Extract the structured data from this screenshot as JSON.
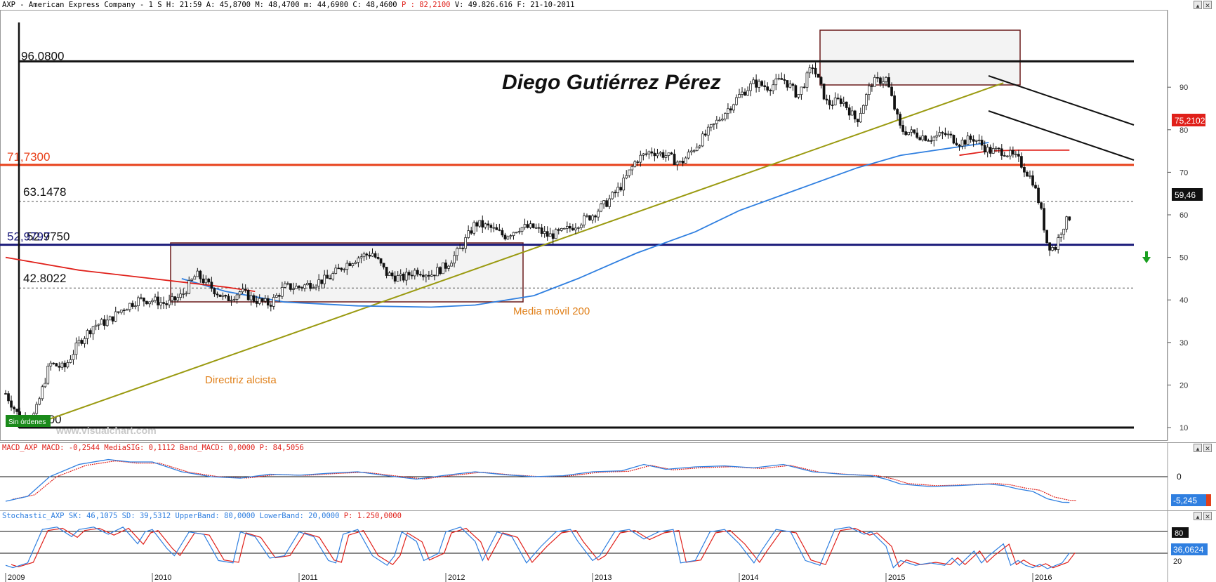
{
  "header": {
    "main": {
      "prefix": "AXP - American Express Company -  1 S H: 21:59 A: 45,8700 M: 48,4700 m: 44,6900 C: 48,4600 ",
      "p": "P : 82,2100",
      "suffix": " V: 49.826.616 F: 21-10-2011"
    },
    "macd": {
      "prefix": "MACD_AXP MACD: -0,2544 MediaSIG: 0,1112 Band_MACD: 0,0000 ",
      "p": "P: 84,5056"
    },
    "stoch": {
      "prefix": "Stochastic_AXP SK: 46,1075 SD: 39,5312 UpperBand: 80,0000 LowerBand: 20,0000 ",
      "p": "P: 1.250,0000"
    }
  },
  "annotations": {
    "author": "Diego Gutiérrez Pérez",
    "ma_label": "Media móvil 200",
    "trend_label": "Directriz alcista",
    "watermark": "www.visualchart.com",
    "badge": "Sin órdenes"
  },
  "levels": [
    {
      "label": "96.0800",
      "value": 96.08
    },
    {
      "label": "71,7300",
      "value": 71.73
    },
    {
      "label": "63.1478",
      "value": 63.1478
    },
    {
      "label": "52.9750",
      "value": 52.975
    },
    {
      "label": "52,9797",
      "value": 52.9797
    },
    {
      "label": "42.8022",
      "value": 42.8022
    },
    {
      "label": ".00",
      "value": 10
    }
  ],
  "badges": {
    "price_ma": "75,2102",
    "price_last": "59,46",
    "macd_val": "-5,245",
    "macd_zero": "0",
    "stoch_val": "36,0624",
    "stoch_80": "80",
    "stoch_axis": "20"
  },
  "colors": {
    "ma200": "#2f7fe0",
    "ma_short": "#e0201a",
    "trendline": "#9a9a10",
    "resistance": "#e8401a",
    "support": "#1a1a7a",
    "macd": "#2f7fe0",
    "signal": "#e0201a"
  },
  "chart_data": {
    "type": "candlestick",
    "x_axis": {
      "tick_labels": [
        "2009",
        "2010",
        "2011",
        "2012",
        "2013",
        "2014",
        "2015",
        "2016"
      ]
    },
    "y_axis": {
      "range": [
        6,
        100
      ],
      "tick_labels": [
        "10",
        "20",
        "30",
        "40",
        "50",
        "60",
        "70",
        "80",
        "90"
      ]
    },
    "series": [
      {
        "name": "AXP",
        "kind": "price",
        "points": [
          [
            2009.0,
            18
          ],
          [
            2009.1,
            12
          ],
          [
            2009.2,
            13
          ],
          [
            2009.3,
            25
          ],
          [
            2009.4,
            24
          ],
          [
            2009.5,
            30
          ],
          [
            2009.6,
            34
          ],
          [
            2009.7,
            35
          ],
          [
            2009.8,
            38
          ],
          [
            2009.9,
            40
          ],
          [
            2010.0,
            40
          ],
          [
            2010.1,
            39
          ],
          [
            2010.2,
            41
          ],
          [
            2010.3,
            46
          ],
          [
            2010.4,
            43
          ],
          [
            2010.5,
            40
          ],
          [
            2010.6,
            42
          ],
          [
            2010.7,
            40
          ],
          [
            2010.8,
            39
          ],
          [
            2010.9,
            43
          ],
          [
            2011.0,
            43
          ],
          [
            2011.1,
            44
          ],
          [
            2011.2,
            45
          ],
          [
            2011.3,
            48
          ],
          [
            2011.4,
            50
          ],
          [
            2011.5,
            51
          ],
          [
            2011.6,
            46
          ],
          [
            2011.7,
            45
          ],
          [
            2011.8,
            47
          ],
          [
            2011.9,
            46
          ],
          [
            2012.0,
            48
          ],
          [
            2012.1,
            52
          ],
          [
            2012.2,
            58
          ],
          [
            2012.3,
            57
          ],
          [
            2012.4,
            55
          ],
          [
            2012.5,
            57
          ],
          [
            2012.6,
            57
          ],
          [
            2012.7,
            55
          ],
          [
            2012.8,
            56
          ],
          [
            2012.9,
            58
          ],
          [
            2013.0,
            60
          ],
          [
            2013.1,
            63
          ],
          [
            2013.2,
            67
          ],
          [
            2013.3,
            73
          ],
          [
            2013.4,
            75
          ],
          [
            2013.5,
            74
          ],
          [
            2013.6,
            72
          ],
          [
            2013.7,
            76
          ],
          [
            2013.8,
            80
          ],
          [
            2013.9,
            84
          ],
          [
            2014.0,
            88
          ],
          [
            2014.1,
            91
          ],
          [
            2014.2,
            90
          ],
          [
            2014.3,
            92
          ],
          [
            2014.4,
            88
          ],
          [
            2014.5,
            95
          ],
          [
            2014.6,
            86
          ],
          [
            2014.7,
            87
          ],
          [
            2014.8,
            82
          ],
          [
            2014.9,
            91
          ],
          [
            2015.0,
            92
          ],
          [
            2015.1,
            80
          ],
          [
            2015.2,
            79
          ],
          [
            2015.3,
            78
          ],
          [
            2015.4,
            79
          ],
          [
            2015.5,
            77
          ],
          [
            2015.6,
            78
          ],
          [
            2015.7,
            75
          ],
          [
            2015.8,
            75
          ],
          [
            2015.9,
            73
          ],
          [
            2016.0,
            68
          ],
          [
            2016.05,
            62
          ],
          [
            2016.1,
            53
          ],
          [
            2016.15,
            52
          ],
          [
            2016.2,
            57
          ],
          [
            2016.25,
            59.46
          ]
        ]
      },
      {
        "name": "Media móvil 200",
        "kind": "ma200",
        "points": [
          [
            2010.2,
            45
          ],
          [
            2010.5,
            42
          ],
          [
            2010.9,
            39.5
          ],
          [
            2011.4,
            38.6
          ],
          [
            2011.9,
            38.3
          ],
          [
            2012.2,
            38.8
          ],
          [
            2012.6,
            41
          ],
          [
            2012.9,
            45
          ],
          [
            2013.3,
            51
          ],
          [
            2013.7,
            56
          ],
          [
            2014.0,
            61
          ],
          [
            2014.4,
            66
          ],
          [
            2014.8,
            71
          ],
          [
            2015.1,
            74
          ],
          [
            2015.5,
            76
          ],
          [
            2015.7,
            77
          ]
        ]
      },
      {
        "name": "",
        "kind": "ma_short",
        "points": [
          [
            2009.0,
            50
          ],
          [
            2009.5,
            47
          ],
          [
            2010.0,
            45
          ],
          [
            2010.5,
            43
          ],
          [
            2010.7,
            42
          ]
        ]
      },
      {
        "name": "",
        "kind": "ma_short_right",
        "points": [
          [
            2015.5,
            74
          ],
          [
            2015.7,
            75
          ],
          [
            2015.9,
            75.2
          ],
          [
            2016.25,
            75.2
          ]
        ]
      },
      {
        "name": "MACD",
        "kind": "macd",
        "y_range": [
          -6,
          5
        ],
        "points": [
          [
            2009.0,
            -5
          ],
          [
            2009.15,
            -4
          ],
          [
            2009.3,
            0
          ],
          [
            2009.5,
            2.5
          ],
          [
            2009.7,
            3.5
          ],
          [
            2009.85,
            3
          ],
          [
            2010.0,
            3
          ],
          [
            2010.2,
            1
          ],
          [
            2010.4,
            0
          ],
          [
            2010.6,
            -0.3
          ],
          [
            2010.8,
            0.5
          ],
          [
            2011.0,
            0.3
          ],
          [
            2011.2,
            0.7
          ],
          [
            2011.4,
            1
          ],
          [
            2011.6,
            0.2
          ],
          [
            2011.8,
            -0.5
          ],
          [
            2012.0,
            0.3
          ],
          [
            2012.2,
            1
          ],
          [
            2012.4,
            0.4
          ],
          [
            2012.6,
            0
          ],
          [
            2012.8,
            0.2
          ],
          [
            2013.0,
            1
          ],
          [
            2013.2,
            1.2
          ],
          [
            2013.35,
            2.5
          ],
          [
            2013.5,
            1.5
          ],
          [
            2013.7,
            2
          ],
          [
            2013.9,
            2.2
          ],
          [
            2014.1,
            1.8
          ],
          [
            2014.3,
            2.5
          ],
          [
            2014.5,
            1
          ],
          [
            2014.7,
            0.5
          ],
          [
            2014.9,
            0.2
          ],
          [
            2015.0,
            -0.5
          ],
          [
            2015.1,
            -1.5
          ],
          [
            2015.3,
            -2
          ],
          [
            2015.5,
            -1.8
          ],
          [
            2015.7,
            -1.5
          ],
          [
            2015.8,
            -1.8
          ],
          [
            2015.9,
            -2.5
          ],
          [
            2016.0,
            -3
          ],
          [
            2016.1,
            -4.5
          ],
          [
            2016.2,
            -5.2
          ],
          [
            2016.25,
            -5.245
          ]
        ]
      },
      {
        "name": "SK",
        "kind": "stoch",
        "y_range": [
          0,
          100
        ],
        "points": [
          [
            2009.0,
            10
          ],
          [
            2009.05,
            5
          ],
          [
            2009.15,
            15
          ],
          [
            2009.25,
            85
          ],
          [
            2009.35,
            90
          ],
          [
            2009.45,
            70
          ],
          [
            2009.5,
            85
          ],
          [
            2009.6,
            90
          ],
          [
            2009.7,
            75
          ],
          [
            2009.8,
            90
          ],
          [
            2009.9,
            55
          ],
          [
            2009.95,
            80
          ],
          [
            2010.0,
            85
          ],
          [
            2010.1,
            45
          ],
          [
            2010.15,
            30
          ],
          [
            2010.25,
            80
          ],
          [
            2010.35,
            75
          ],
          [
            2010.45,
            20
          ],
          [
            2010.55,
            15
          ],
          [
            2010.6,
            80
          ],
          [
            2010.7,
            70
          ],
          [
            2010.8,
            25
          ],
          [
            2010.9,
            30
          ],
          [
            2011.0,
            80
          ],
          [
            2011.1,
            70
          ],
          [
            2011.2,
            20
          ],
          [
            2011.25,
            15
          ],
          [
            2011.3,
            75
          ],
          [
            2011.4,
            85
          ],
          [
            2011.5,
            30
          ],
          [
            2011.6,
            10
          ],
          [
            2011.65,
            30
          ],
          [
            2011.7,
            80
          ],
          [
            2011.8,
            60
          ],
          [
            2011.85,
            20
          ],
          [
            2011.95,
            35
          ],
          [
            2012.0,
            80
          ],
          [
            2012.1,
            90
          ],
          [
            2012.2,
            60
          ],
          [
            2012.25,
            20
          ],
          [
            2012.35,
            80
          ],
          [
            2012.45,
            70
          ],
          [
            2012.55,
            15
          ],
          [
            2012.65,
            50
          ],
          [
            2012.75,
            80
          ],
          [
            2012.85,
            85
          ],
          [
            2012.9,
            60
          ],
          [
            2013.0,
            20
          ],
          [
            2013.05,
            30
          ],
          [
            2013.15,
            80
          ],
          [
            2013.25,
            85
          ],
          [
            2013.35,
            65
          ],
          [
            2013.45,
            80
          ],
          [
            2013.55,
            85
          ],
          [
            2013.6,
            15
          ],
          [
            2013.7,
            20
          ],
          [
            2013.8,
            80
          ],
          [
            2013.9,
            85
          ],
          [
            2014.0,
            55
          ],
          [
            2014.1,
            15
          ],
          [
            2014.15,
            40
          ],
          [
            2014.25,
            85
          ],
          [
            2014.35,
            80
          ],
          [
            2014.45,
            20
          ],
          [
            2014.55,
            10
          ],
          [
            2014.65,
            85
          ],
          [
            2014.75,
            90
          ],
          [
            2014.85,
            75
          ],
          [
            2014.9,
            80
          ],
          [
            2015.0,
            50
          ],
          [
            2015.05,
            5
          ],
          [
            2015.1,
            20
          ],
          [
            2015.2,
            10
          ],
          [
            2015.3,
            15
          ],
          [
            2015.4,
            10
          ],
          [
            2015.45,
            25
          ],
          [
            2015.5,
            10
          ],
          [
            2015.6,
            40
          ],
          [
            2015.65,
            15
          ],
          [
            2015.7,
            30
          ],
          [
            2015.8,
            55
          ],
          [
            2015.85,
            10
          ],
          [
            2015.9,
            20
          ],
          [
            2015.95,
            10
          ],
          [
            2016.0,
            5
          ],
          [
            2016.05,
            12
          ],
          [
            2016.1,
            3
          ],
          [
            2016.2,
            15
          ],
          [
            2016.25,
            36.06
          ]
        ]
      }
    ]
  }
}
